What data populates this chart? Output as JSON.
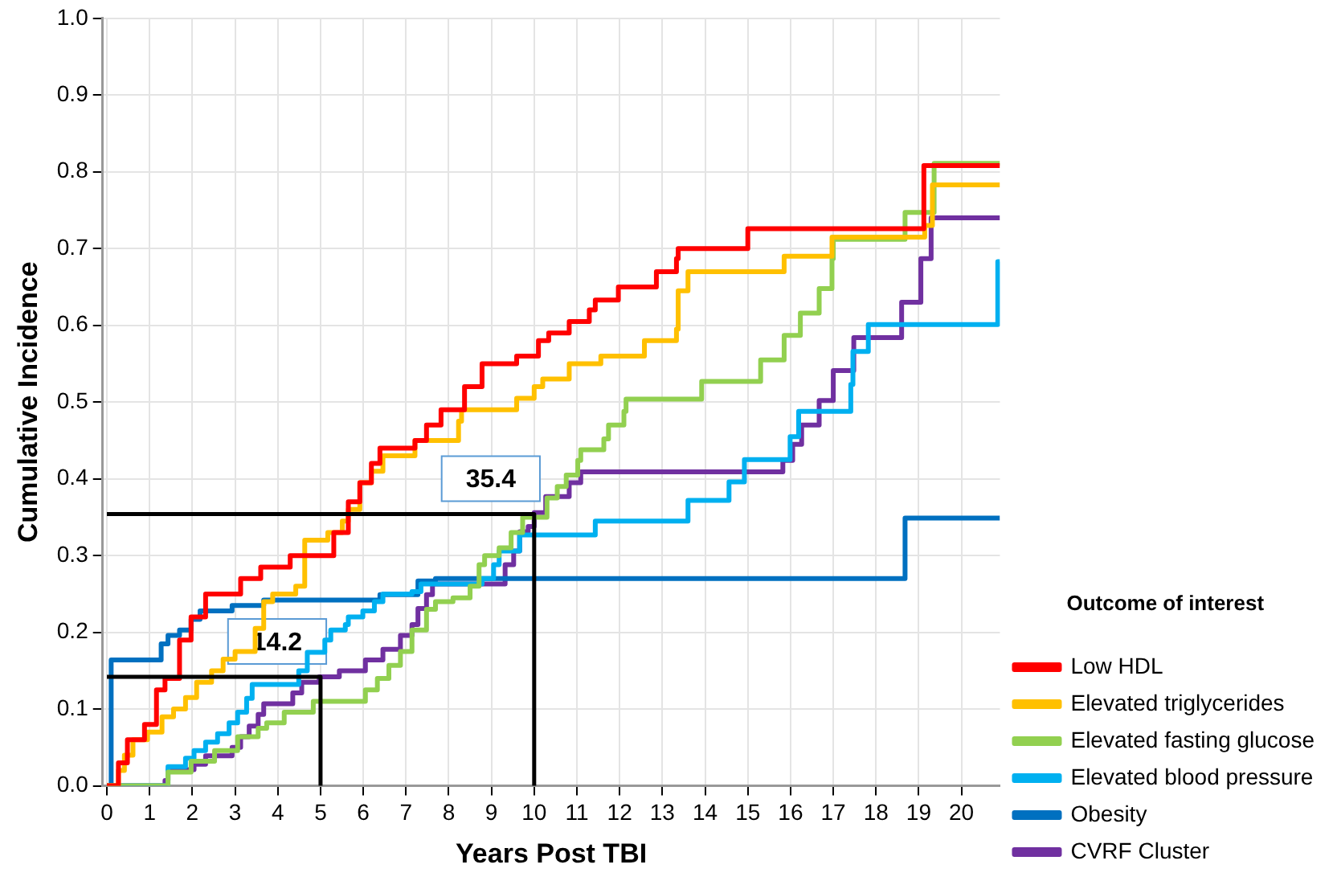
{
  "chart_data": {
    "type": "step",
    "xlabel": "Years Post TBI",
    "ylabel": "Cumulative Incidence",
    "legend_title": "Outcome of interest",
    "legend": "bottom right",
    "grid": true,
    "line_style": "solid",
    "marker": "none",
    "xlim": [
      -0.1,
      20.9
    ],
    "xticks": [
      0,
      1,
      2,
      3,
      4,
      5,
      6,
      7,
      8,
      9,
      10,
      11,
      12,
      13,
      14,
      15,
      16,
      17,
      18,
      19,
      20
    ],
    "ylim": [
      0,
      1
    ],
    "yticks": [
      {
        "value": 0,
        "label": "0.0"
      },
      0.1,
      0.2,
      0.3,
      0.4,
      0.5,
      0.6,
      0.7,
      0.8,
      0.9,
      {
        "value": 1,
        "label": "1.0"
      }
    ],
    "annotations": [
      {
        "text": "14.2",
        "x": 5,
        "y": 0.142
      },
      {
        "text": "35.4",
        "x": 10,
        "y": 0.354
      }
    ],
    "series": [
      {
        "type": "line",
        "color": "#000000",
        "x": [
          0,
          5,
          5
        ],
        "values": [
          0.142,
          0.142,
          0
        ]
      },
      {
        "type": "line",
        "color": "#000000",
        "x": [
          0,
          10,
          10
        ],
        "values": [
          0.354,
          0.354,
          0
        ]
      },
      {
        "name": "Low HDL",
        "color": "#ff0000",
        "x": [
          0,
          0.27,
          0.48,
          0.88,
          1.16,
          1.36,
          1.7,
          1.97,
          2.31,
          3.13,
          3.6,
          4.29,
          5.31,
          5.65,
          5.92,
          6.19,
          6.39,
          7.21,
          7.48,
          7.82,
          8.37,
          8.78,
          9.59,
          10.1,
          10.34,
          10.82,
          11.29,
          11.43,
          11.97,
          12.86,
          13.33,
          13.37,
          15.0,
          19.12,
          20.9
        ],
        "values": [
          0,
          0.03,
          0.06,
          0.08,
          0.125,
          0.14,
          0.19,
          0.22,
          0.25,
          0.27,
          0.285,
          0.3,
          0.33,
          0.37,
          0.395,
          0.42,
          0.44,
          0.45,
          0.47,
          0.49,
          0.52,
          0.55,
          0.56,
          0.58,
          0.59,
          0.605,
          0.62,
          0.633,
          0.65,
          0.67,
          0.687,
          0.7,
          0.726,
          0.808,
          0.808
        ]
      },
      {
        "name": "Elevated triglycerides",
        "color": "#ffc000",
        "x": [
          0,
          0.27,
          0.41,
          0.61,
          0.95,
          1.29,
          1.56,
          1.84,
          2.1,
          2.45,
          2.72,
          3.0,
          3.47,
          3.67,
          3.88,
          4.42,
          4.63,
          5.17,
          5.51,
          5.65,
          5.92,
          6.19,
          6.46,
          7.21,
          8.23,
          8.3,
          9.59,
          10.0,
          10.2,
          10.82,
          11.56,
          12.58,
          13.33,
          13.37,
          13.6,
          15.85,
          16.97,
          19.14,
          19.32,
          20.9
        ],
        "values": [
          0,
          0.02,
          0.04,
          0.06,
          0.07,
          0.09,
          0.1,
          0.115,
          0.135,
          0.15,
          0.165,
          0.175,
          0.205,
          0.24,
          0.25,
          0.26,
          0.32,
          0.33,
          0.345,
          0.36,
          0.395,
          0.41,
          0.43,
          0.45,
          0.475,
          0.49,
          0.505,
          0.52,
          0.53,
          0.55,
          0.56,
          0.58,
          0.595,
          0.645,
          0.67,
          0.69,
          0.715,
          0.73,
          0.783,
          0.783
        ]
      },
      {
        "name": "Elevated fasting glucose",
        "color": "#92d050",
        "x": [
          0,
          1.43,
          1.97,
          2.52,
          3.06,
          3.54,
          3.74,
          4.15,
          4.83,
          6.05,
          6.33,
          6.6,
          6.87,
          7.14,
          7.48,
          7.69,
          8.1,
          8.5,
          8.71,
          8.84,
          9.18,
          9.46,
          9.73,
          10.3,
          10.54,
          10.75,
          11.02,
          11.09,
          11.63,
          11.74,
          12.1,
          12.15,
          13.92,
          15.3,
          15.85,
          16.23,
          16.67,
          16.97,
          17.0,
          18.68,
          19.36,
          20.9
        ],
        "values": [
          0,
          0.018,
          0.032,
          0.046,
          0.064,
          0.075,
          0.082,
          0.096,
          0.11,
          0.125,
          0.14,
          0.157,
          0.175,
          0.203,
          0.23,
          0.24,
          0.245,
          0.26,
          0.288,
          0.3,
          0.31,
          0.33,
          0.35,
          0.375,
          0.39,
          0.405,
          0.424,
          0.438,
          0.452,
          0.47,
          0.488,
          0.504,
          0.527,
          0.555,
          0.587,
          0.616,
          0.648,
          0.687,
          0.712,
          0.747,
          0.811,
          0.811
        ]
      },
      {
        "name": "Elevated blood pressure",
        "color": "#00b0f0",
        "x": [
          0,
          1.43,
          1.84,
          2.04,
          2.31,
          2.59,
          2.86,
          3.06,
          3.27,
          3.4,
          4.49,
          4.69,
          5.1,
          5.24,
          5.58,
          5.65,
          5.99,
          6.26,
          6.46,
          7.14,
          7.35,
          8.78,
          9.05,
          9.18,
          9.66,
          11.43,
          13.6,
          14.56,
          14.92,
          15.99,
          16.19,
          17.41,
          17.46,
          17.82,
          20.85,
          20.9
        ],
        "values": [
          0,
          0.025,
          0.036,
          0.046,
          0.057,
          0.068,
          0.082,
          0.096,
          0.114,
          0.132,
          0.15,
          0.174,
          0.19,
          0.203,
          0.21,
          0.22,
          0.228,
          0.24,
          0.25,
          0.253,
          0.263,
          0.27,
          0.288,
          0.306,
          0.327,
          0.345,
          0.372,
          0.396,
          0.425,
          0.455,
          0.488,
          0.523,
          0.566,
          0.601,
          0.683,
          0.683
        ]
      },
      {
        "name": "Obesity",
        "color": "#0070c0",
        "x": [
          0,
          0.1,
          1.27,
          1.43,
          1.7,
          1.97,
          2.18,
          2.93,
          3.67,
          6.39,
          7.28,
          7.69,
          18.68,
          20.9
        ],
        "values": [
          0,
          0.164,
          0.185,
          0.196,
          0.203,
          0.217,
          0.228,
          0.235,
          0.242,
          0.249,
          0.267,
          0.27,
          0.349,
          0.349
        ]
      },
      {
        "name": "CVRF Cluster",
        "color": "#7030a0",
        "x": [
          0,
          1.36,
          1.43,
          2.04,
          2.31,
          2.93,
          3.13,
          3.33,
          3.54,
          3.67,
          4.35,
          4.56,
          4.97,
          5.44,
          6.05,
          6.46,
          6.87,
          7.14,
          7.28,
          7.48,
          7.62,
          9.32,
          9.52,
          9.66,
          9.86,
          10.0,
          10.27,
          10.82,
          11.09,
          15.82,
          16.05,
          16.26,
          16.67,
          17.0,
          17.48,
          18.6,
          19.05,
          19.29,
          20.9
        ],
        "values": [
          0,
          0.007,
          0.021,
          0.028,
          0.039,
          0.05,
          0.064,
          0.078,
          0.093,
          0.107,
          0.121,
          0.135,
          0.142,
          0.15,
          0.164,
          0.178,
          0.196,
          0.21,
          0.231,
          0.249,
          0.263,
          0.288,
          0.306,
          0.331,
          0.338,
          0.356,
          0.377,
          0.395,
          0.409,
          0.424,
          0.445,
          0.47,
          0.502,
          0.541,
          0.584,
          0.63,
          0.687,
          0.74,
          0.74
        ]
      }
    ]
  }
}
